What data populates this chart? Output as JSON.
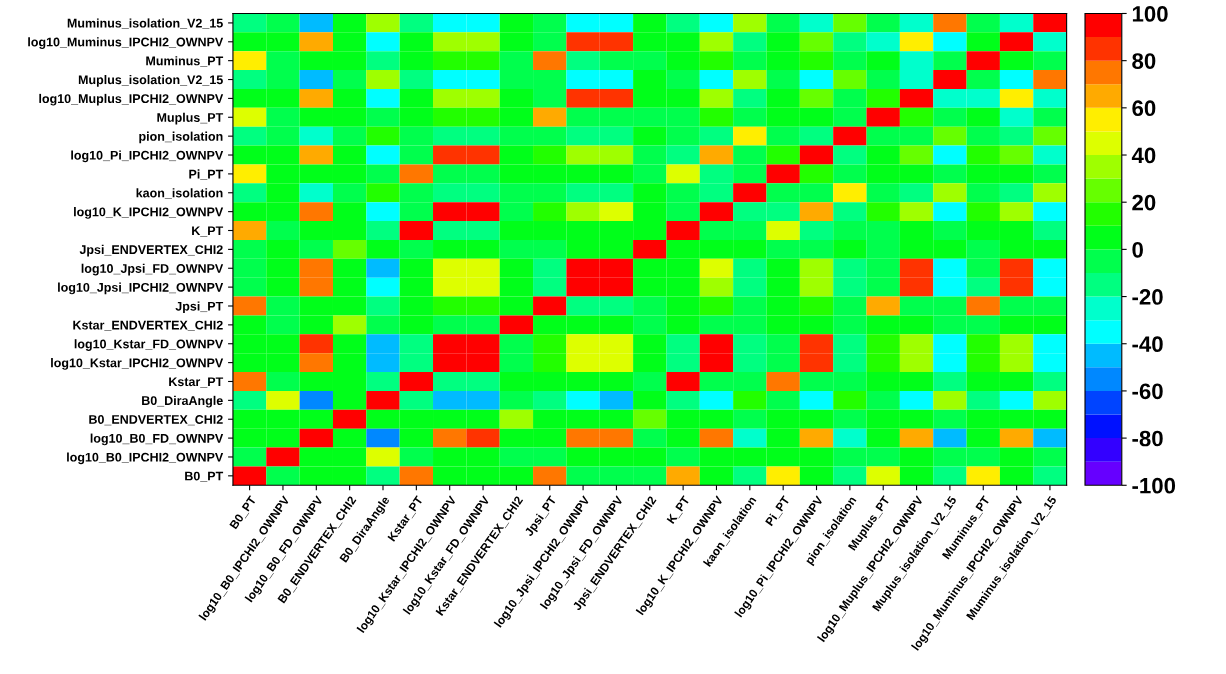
{
  "chart_data": {
    "type": "heatmap",
    "categories": [
      "B0_PT",
      "log10_B0_IPCHI2_OWNPV",
      "log10_B0_FD_OWNPV",
      "B0_ENDVERTEX_CHI2",
      "B0_DiraAngle",
      "Kstar_PT",
      "log10_Kstar_IPCHI2_OWNPV",
      "log10_Kstar_FD_OWNPV",
      "Kstar_ENDVERTEX_CHI2",
      "Jpsi_PT",
      "log10_Jpsi_IPCHI2_OWNPV",
      "log10_Jpsi_FD_OWNPV",
      "Jpsi_ENDVERTEX_CHI2",
      "K_PT",
      "log10_K_IPCHI2_OWNPV",
      "kaon_isolation",
      "Pi_PT",
      "log10_Pi_IPCHI2_OWNPV",
      "pion_isolation",
      "Muplus_PT",
      "log10_Muplus_IPCHI2_OWNPV",
      "Muplus_isolation_V2_15",
      "Muminus_PT",
      "log10_Muminus_IPCHI2_OWNPV",
      "Muminus_isolation_V2_15"
    ],
    "y_categories": [
      "Muminus_isolation_V2_15",
      "log10_Muminus_IPCHI2_OWNPV",
      "Muminus_PT",
      "Muplus_isolation_V2_15",
      "log10_Muplus_IPCHI2_OWNPV",
      "Muplus_PT",
      "pion_isolation",
      "log10_Pi_IPCHI2_OWNPV",
      "Pi_PT",
      "kaon_isolation",
      "log10_K_IPCHI2_OWNPV",
      "K_PT",
      "Jpsi_ENDVERTEX_CHI2",
      "log10_Jpsi_FD_OWNPV",
      "log10_Jpsi_IPCHI2_OWNPV",
      "Jpsi_PT",
      "Kstar_ENDVERTEX_CHI2",
      "log10_Kstar_FD_OWNPV",
      "log10_Kstar_IPCHI2_OWNPV",
      "Kstar_PT",
      "B0_DiraAngle",
      "B0_ENDVERTEX_CHI2",
      "log10_B0_FD_OWNPV",
      "log10_B0_IPCHI2_OWNPV",
      "B0_PT"
    ],
    "cells": [
      [
        -15,
        -5,
        -45,
        5,
        35,
        -15,
        -35,
        -35,
        5,
        -5,
        -35,
        -35,
        5,
        -15,
        -35,
        35,
        -5,
        -25,
        25,
        -5,
        -25,
        75,
        -5,
        -25,
        95
      ],
      [
        5,
        5,
        65,
        5,
        -35,
        5,
        35,
        35,
        5,
        -5,
        85,
        85,
        5,
        5,
        35,
        -15,
        5,
        25,
        -15,
        -25,
        55,
        -35,
        5,
        95,
        -25
      ],
      [
        55,
        -5,
        5,
        5,
        -15,
        5,
        15,
        15,
        -5,
        75,
        -15,
        -5,
        -5,
        5,
        15,
        -5,
        5,
        15,
        -5,
        5,
        -25,
        -5,
        95,
        5,
        -5
      ],
      [
        -15,
        -5,
        -45,
        -5,
        35,
        -15,
        -35,
        -35,
        -5,
        -5,
        -35,
        -35,
        5,
        -5,
        -35,
        35,
        -5,
        -35,
        25,
        -5,
        -25,
        95,
        -5,
        -35,
        75
      ],
      [
        5,
        5,
        65,
        5,
        -35,
        5,
        35,
        35,
        5,
        -5,
        85,
        85,
        5,
        5,
        35,
        -15,
        5,
        25,
        -5,
        15,
        95,
        -25,
        -25,
        55,
        -25
      ],
      [
        45,
        -5,
        5,
        5,
        -5,
        5,
        15,
        15,
        5,
        65,
        -5,
        -5,
        -5,
        -5,
        15,
        -5,
        5,
        5,
        -5,
        95,
        15,
        -5,
        5,
        -25,
        -5
      ],
      [
        -15,
        -5,
        -25,
        -5,
        15,
        -5,
        -15,
        -15,
        -5,
        -5,
        -15,
        -15,
        5,
        -5,
        -15,
        55,
        -5,
        -15,
        95,
        -5,
        -5,
        25,
        -5,
        -15,
        25
      ],
      [
        5,
        5,
        65,
        5,
        -35,
        -5,
        85,
        85,
        5,
        15,
        35,
        35,
        -5,
        -15,
        65,
        -5,
        15,
        95,
        -15,
        5,
        25,
        -35,
        15,
        25,
        -25
      ],
      [
        55,
        5,
        5,
        5,
        -5,
        75,
        -5,
        -5,
        5,
        5,
        5,
        5,
        -5,
        45,
        -15,
        -5,
        95,
        15,
        -5,
        5,
        5,
        -5,
        5,
        5,
        -5
      ],
      [
        -15,
        5,
        -25,
        -5,
        15,
        -5,
        -15,
        -15,
        -5,
        -5,
        -15,
        -15,
        5,
        -5,
        -15,
        95,
        -5,
        -5,
        55,
        -5,
        -15,
        35,
        -5,
        -15,
        35
      ],
      [
        5,
        5,
        75,
        5,
        -35,
        -5,
        95,
        95,
        -5,
        15,
        35,
        45,
        5,
        -5,
        95,
        -15,
        -15,
        65,
        -15,
        15,
        35,
        -35,
        15,
        35,
        -35
      ],
      [
        65,
        -5,
        5,
        5,
        -15,
        95,
        -15,
        -15,
        5,
        5,
        5,
        5,
        5,
        95,
        -5,
        -5,
        45,
        -15,
        -5,
        -5,
        5,
        -5,
        5,
        5,
        -15
      ],
      [
        -5,
        5,
        -5,
        25,
        5,
        -5,
        5,
        5,
        -5,
        -5,
        5,
        5,
        95,
        5,
        5,
        5,
        -5,
        -5,
        5,
        -5,
        5,
        5,
        -5,
        5,
        5
      ],
      [
        -5,
        5,
        75,
        5,
        -45,
        5,
        45,
        45,
        5,
        -15,
        95,
        95,
        5,
        5,
        45,
        -15,
        5,
        35,
        -15,
        -5,
        85,
        -35,
        -5,
        85,
        -35
      ],
      [
        -5,
        5,
        75,
        5,
        -35,
        5,
        45,
        45,
        5,
        -15,
        95,
        95,
        5,
        5,
        35,
        -15,
        5,
        35,
        -15,
        -5,
        85,
        -35,
        -15,
        85,
        -35
      ],
      [
        75,
        -5,
        5,
        5,
        -15,
        5,
        15,
        15,
        5,
        95,
        -15,
        -15,
        -5,
        5,
        15,
        -5,
        5,
        15,
        -5,
        65,
        -5,
        -5,
        75,
        -5,
        -5
      ],
      [
        5,
        -5,
        5,
        35,
        -5,
        5,
        -5,
        -5,
        95,
        5,
        5,
        5,
        -5,
        5,
        -5,
        -5,
        5,
        5,
        -5,
        5,
        5,
        -5,
        -5,
        5,
        5
      ],
      [
        5,
        5,
        85,
        5,
        -45,
        -15,
        95,
        95,
        -5,
        15,
        45,
        45,
        5,
        -15,
        95,
        -15,
        -5,
        85,
        -15,
        15,
        35,
        -35,
        15,
        35,
        -35
      ],
      [
        5,
        5,
        75,
        5,
        -45,
        -15,
        95,
        95,
        -5,
        15,
        45,
        45,
        5,
        -15,
        95,
        -15,
        -5,
        85,
        -15,
        15,
        35,
        -35,
        15,
        35,
        -35
      ],
      [
        75,
        -5,
        5,
        5,
        -15,
        95,
        -15,
        -15,
        5,
        5,
        5,
        5,
        -5,
        95,
        -5,
        -5,
        75,
        -5,
        -5,
        5,
        5,
        -15,
        5,
        5,
        -15
      ],
      [
        -15,
        45,
        -55,
        5,
        95,
        -15,
        -45,
        -45,
        -5,
        -15,
        -35,
        -45,
        5,
        -15,
        -35,
        15,
        -5,
        -35,
        15,
        -5,
        -35,
        35,
        -15,
        -35,
        35
      ],
      [
        5,
        5,
        5,
        95,
        5,
        5,
        5,
        5,
        35,
        5,
        5,
        5,
        25,
        5,
        5,
        -5,
        5,
        5,
        -5,
        5,
        5,
        -5,
        5,
        5,
        5
      ],
      [
        5,
        5,
        95,
        5,
        -55,
        5,
        75,
        85,
        5,
        5,
        75,
        75,
        -5,
        5,
        75,
        -25,
        5,
        65,
        -25,
        5,
        65,
        -45,
        5,
        65,
        -45
      ],
      [
        -5,
        95,
        5,
        5,
        45,
        -5,
        5,
        5,
        -5,
        -5,
        5,
        5,
        5,
        -5,
        5,
        5,
        5,
        5,
        -5,
        -5,
        5,
        -5,
        -5,
        5,
        -5
      ],
      [
        95,
        -5,
        5,
        5,
        -15,
        75,
        5,
        5,
        5,
        75,
        -5,
        -5,
        -5,
        65,
        5,
        -15,
        55,
        5,
        -15,
        45,
        5,
        -15,
        55,
        5,
        -15
      ]
    ],
    "clim": [
      -100,
      100
    ],
    "cticks": [
      -100,
      -80,
      -60,
      -40,
      -20,
      0,
      20,
      40,
      60,
      80,
      100
    ]
  }
}
